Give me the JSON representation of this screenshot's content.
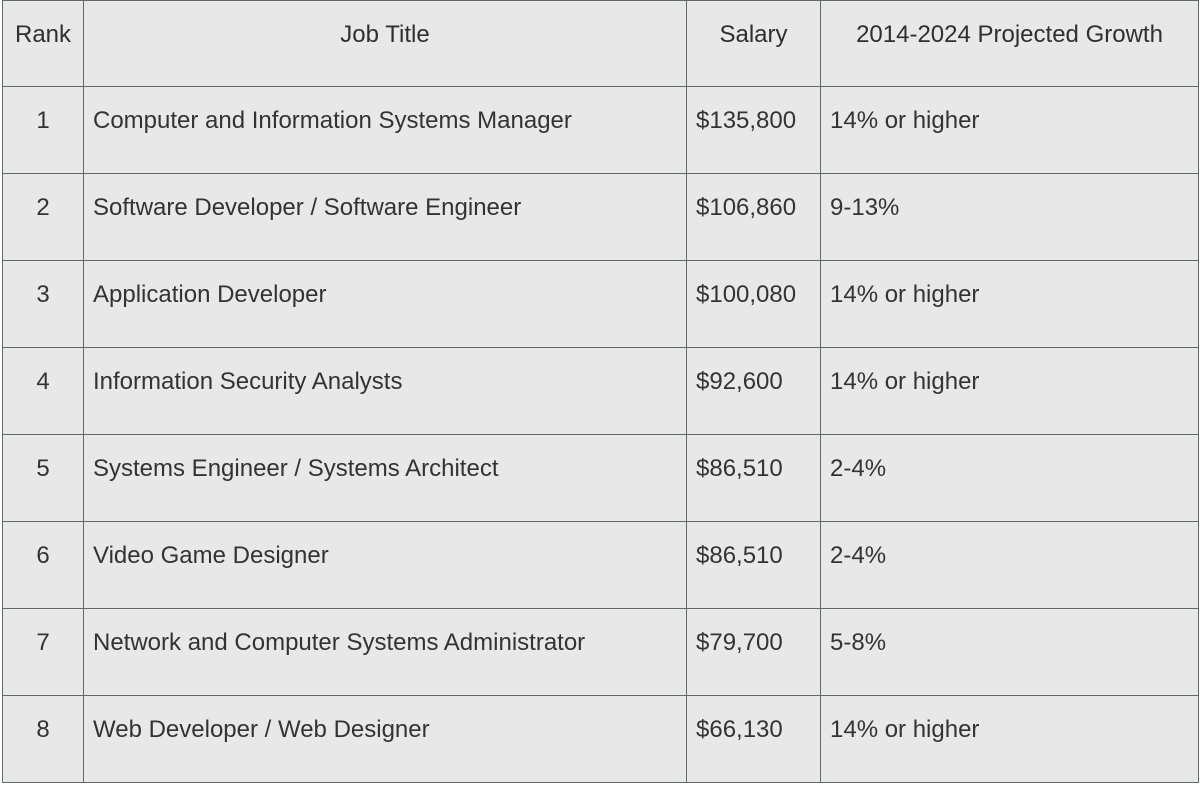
{
  "table": {
    "columns": [
      "Rank",
      "Job Title",
      "Salary",
      "2014-2024 Projected Growth"
    ],
    "rows": [
      [
        "1",
        "Computer and Information Systems Manager",
        "$135,800",
        "14% or higher"
      ],
      [
        "2",
        "Software Developer / Software Engineer",
        "$106,860",
        "9-13%"
      ],
      [
        "3",
        "Application Developer",
        "$100,080",
        "14% or higher"
      ],
      [
        "4",
        "Information Security Analysts",
        "$92,600",
        "14% or higher"
      ],
      [
        "5",
        "Systems Engineer / Systems Architect",
        "$86,510",
        "2-4%"
      ],
      [
        "6",
        "Video Game Designer",
        "$86,510",
        "2-4%"
      ],
      [
        "7",
        "Network and Computer Systems Administrator",
        "$79,700",
        "5-8%"
      ],
      [
        "8",
        "Web Developer / Web Designer",
        "$66,130",
        "14% or higher"
      ]
    ]
  }
}
